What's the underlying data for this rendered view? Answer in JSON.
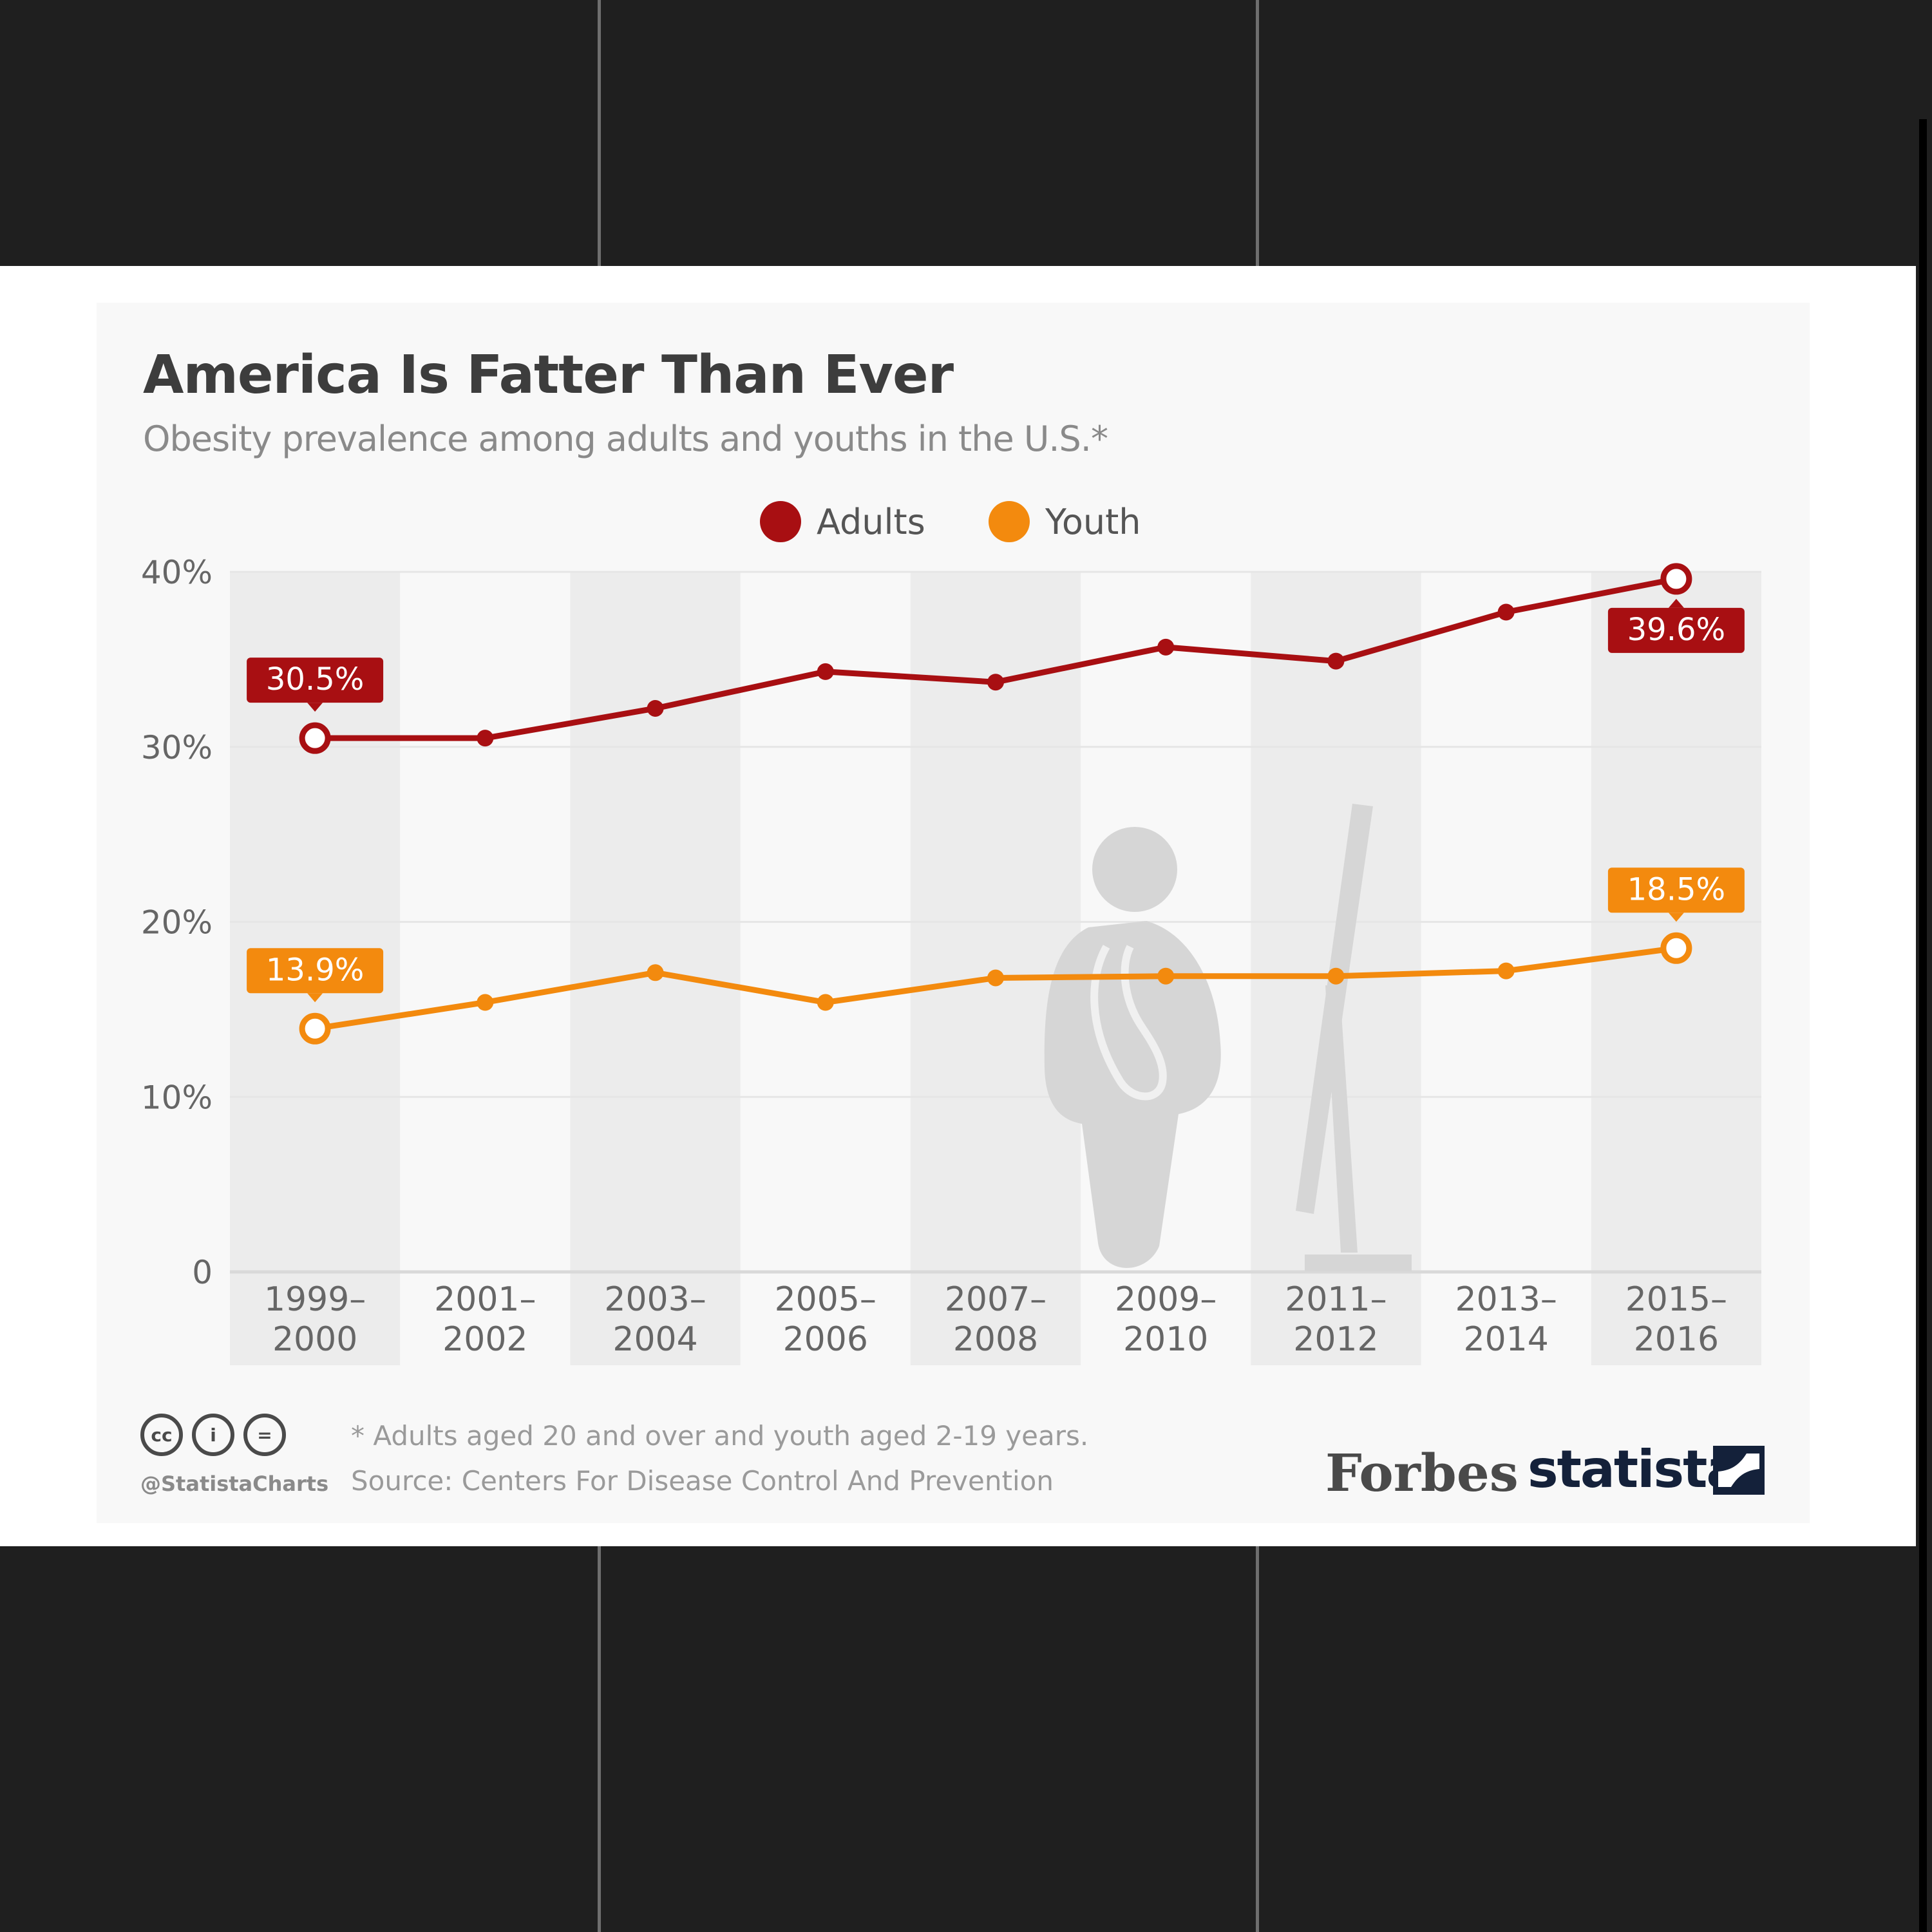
{
  "chart_data": {
    "type": "line",
    "title": "America Is Fatter Than Ever",
    "subtitle": "Obesity prevalence among adults and youths in the U.S.*",
    "categories": [
      [
        "1999–",
        "2000"
      ],
      [
        "2001–",
        "2002"
      ],
      [
        "2003–",
        "2004"
      ],
      [
        "2005–",
        "2006"
      ],
      [
        "2007–",
        "2008"
      ],
      [
        "2009–",
        "2010"
      ],
      [
        "2011–",
        "2012"
      ],
      [
        "2013–",
        "2014"
      ],
      [
        "2015–",
        "2016"
      ]
    ],
    "ylim": [
      0,
      40
    ],
    "yticks": [
      0,
      10,
      20,
      30,
      40
    ],
    "ytick_labels": [
      "0",
      "10%",
      "20%",
      "30%",
      "40%"
    ],
    "legend_position": "top-center",
    "series": [
      {
        "name": "Adults",
        "color": "#a80f12",
        "values": [
          30.5,
          30.5,
          32.2,
          34.3,
          33.7,
          35.7,
          34.9,
          37.7,
          39.6
        ],
        "labels": {
          "first": "30.5%",
          "last": "39.6%"
        }
      },
      {
        "name": "Youth",
        "color": "#f38a0e",
        "values": [
          13.9,
          15.4,
          17.1,
          15.4,
          16.8,
          16.9,
          16.9,
          17.2,
          18.5
        ],
        "labels": {
          "first": "13.9%",
          "last": "18.5%"
        }
      }
    ]
  },
  "footer": {
    "note": "* Adults aged 20 and over and youth aged 2-19 years.",
    "source": "Source: Centers For Disease Control And Prevention",
    "handle": "@StatistaCharts",
    "cc_icons": [
      "cc",
      "i",
      "="
    ]
  },
  "brands": {
    "forbes": "Forbes",
    "statista": "statista"
  }
}
